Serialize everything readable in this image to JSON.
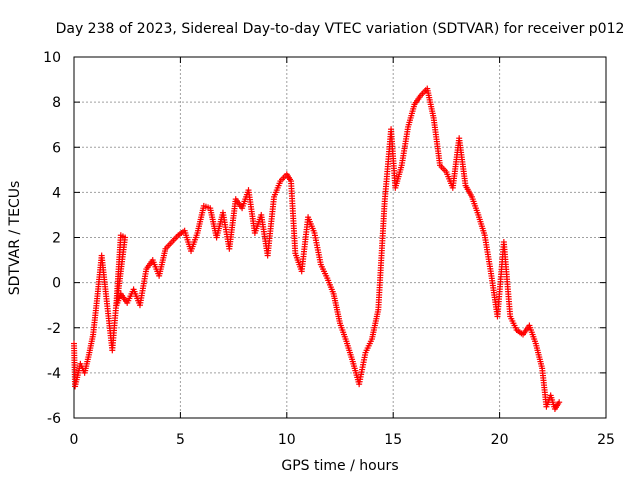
{
  "chart_data": {
    "type": "scatter",
    "title": "Day 238 of 2023, Sidereal Day-to-day VTEC variation (SDTVAR) for receiver p012",
    "xlabel": "GPS time / hours",
    "ylabel": "SDTVAR / TECUs",
    "xlim": [
      0,
      25
    ],
    "ylim": [
      -6,
      10
    ],
    "xticks": [
      "0",
      "5",
      "10",
      "15",
      "20",
      "25"
    ],
    "yticks": [
      "-6",
      "-4",
      "-2",
      "0",
      "2",
      "4",
      "6",
      "8",
      "10"
    ],
    "grid": true,
    "marker": "+",
    "series": [
      {
        "name": "p012",
        "color": "#ff0000",
        "x": [
          0.0,
          0.05,
          0.3,
          0.5,
          0.7,
          0.9,
          1.1,
          1.3,
          1.5,
          1.8,
          2.0,
          2.2,
          2.4,
          2.0,
          2.2,
          2.5,
          2.8,
          3.1,
          3.4,
          3.7,
          4.0,
          4.3,
          4.6,
          4.9,
          5.2,
          5.5,
          5.8,
          6.1,
          6.4,
          6.7,
          7.0,
          7.3,
          7.6,
          7.9,
          8.2,
          8.5,
          8.8,
          9.1,
          9.4,
          9.7,
          10.0,
          10.2,
          10.4,
          10.7,
          11.0,
          11.3,
          11.6,
          11.9,
          12.2,
          12.5,
          12.8,
          13.1,
          13.4,
          13.7,
          14.0,
          14.3,
          14.6,
          14.9,
          15.1,
          15.4,
          15.7,
          16.0,
          16.3,
          16.6,
          16.9,
          17.2,
          17.5,
          17.8,
          18.1,
          18.4,
          18.7,
          19.0,
          19.3,
          19.6,
          19.9,
          20.2,
          20.5,
          20.8,
          21.1,
          21.4,
          21.7,
          22.0,
          22.2,
          22.4,
          22.6,
          22.8
        ],
        "y": [
          -2.7,
          -4.6,
          -3.6,
          -4.0,
          -3.2,
          -2.3,
          -0.6,
          1.2,
          -0.5,
          -3.0,
          -0.8,
          2.1,
          2.0,
          -1.0,
          -0.5,
          -0.9,
          -0.3,
          -1.0,
          0.6,
          1.0,
          0.3,
          1.5,
          1.8,
          2.1,
          2.3,
          1.4,
          2.2,
          3.4,
          3.3,
          2.0,
          3.1,
          1.5,
          3.7,
          3.3,
          4.1,
          2.2,
          3.0,
          1.2,
          3.8,
          4.5,
          4.8,
          4.5,
          1.3,
          0.5,
          2.9,
          2.2,
          0.8,
          0.2,
          -0.5,
          -1.8,
          -2.6,
          -3.5,
          -4.5,
          -3.1,
          -2.5,
          -1.2,
          3.6,
          6.8,
          4.2,
          5.2,
          6.9,
          7.9,
          8.3,
          8.6,
          7.3,
          5.2,
          4.9,
          4.2,
          6.4,
          4.3,
          3.8,
          3.0,
          2.1,
          0.4,
          -1.5,
          1.8,
          -1.5,
          -2.1,
          -2.3,
          -1.9,
          -2.7,
          -3.8,
          -5.5,
          -5.0,
          -5.6,
          -5.3
        ]
      }
    ]
  }
}
